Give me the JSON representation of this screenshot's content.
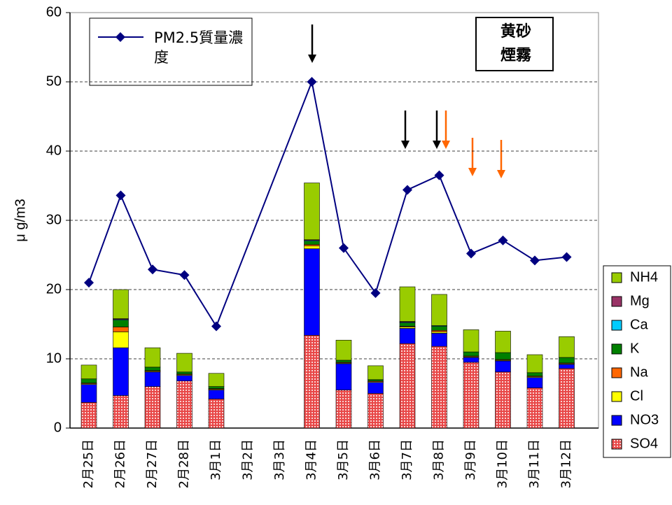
{
  "chart_data": {
    "type": "stacked-bar-line",
    "y_label": "μ g/m3",
    "categories": [
      "2月25日",
      "2月26日",
      "2月27日",
      "2月28日",
      "3月1日",
      "3月2日",
      "3月3日",
      "3月4日",
      "3月5日",
      "3月6日",
      "3月7日",
      "3月8日",
      "3月9日",
      "3月10日",
      "3月11日",
      "3月12日"
    ],
    "ylim": [
      0,
      60
    ],
    "yticks": [
      0,
      10,
      20,
      30,
      40,
      50,
      60
    ],
    "grid": true,
    "series": [
      {
        "name": "SO4",
        "color": "#e84848",
        "values": [
          3.7,
          4.7,
          6.0,
          6.8,
          4.2,
          null,
          null,
          13.4,
          5.5,
          5.0,
          12.2,
          11.8,
          9.5,
          8.1,
          5.8,
          8.6
        ]
      },
      {
        "name": "NO3",
        "color": "#0000ff",
        "values": [
          2.6,
          6.9,
          2.1,
          0.8,
          1.3,
          null,
          null,
          12.5,
          3.8,
          1.6,
          2.2,
          1.9,
          0.7,
          1.6,
          1.5,
          0.6
        ]
      },
      {
        "name": "Cl",
        "color": "#ffff00",
        "values": [
          0.1,
          2.3,
          0.1,
          0.1,
          0.1,
          null,
          null,
          0.4,
          0.1,
          0.1,
          0.2,
          0.2,
          0.1,
          0.1,
          0.1,
          0.1
        ]
      },
      {
        "name": "Na",
        "color": "#ff6600",
        "values": [
          0.1,
          0.7,
          0.1,
          0.1,
          0.1,
          null,
          null,
          0.2,
          0.1,
          0.1,
          0.1,
          0.2,
          0.1,
          0.1,
          0.1,
          0.1
        ]
      },
      {
        "name": "K",
        "color": "#008000",
        "values": [
          0.6,
          1.0,
          0.5,
          0.3,
          0.3,
          null,
          null,
          0.5,
          0.3,
          0.2,
          0.5,
          0.6,
          0.6,
          1.0,
          0.5,
          0.8
        ]
      },
      {
        "name": "Ca",
        "color": "#00ccff",
        "values": [
          0,
          0.1,
          0,
          0,
          0,
          null,
          null,
          0.1,
          0,
          0,
          0.1,
          0.1,
          0,
          0,
          0,
          0
        ]
      },
      {
        "name": "Mg",
        "color": "#993366",
        "values": [
          0,
          0.1,
          0,
          0,
          0,
          null,
          null,
          0.1,
          0,
          0,
          0.1,
          0,
          0,
          0,
          0,
          0
        ]
      },
      {
        "name": "NH4",
        "color": "#99cc00",
        "values": [
          2.0,
          4.2,
          2.8,
          2.7,
          1.9,
          null,
          null,
          8.2,
          2.9,
          2.0,
          5.0,
          4.5,
          3.2,
          3.1,
          2.6,
          3.0
        ]
      }
    ],
    "line": {
      "name": "PM2.5質量濃度",
      "color": "#000080",
      "span_gaps": true,
      "values": [
        21.0,
        33.6,
        22.9,
        22.1,
        14.7,
        null,
        null,
        50.0,
        26.0,
        19.5,
        34.4,
        36.5,
        25.2,
        27.1,
        24.2,
        24.7
      ]
    },
    "annotations": {
      "dust": {
        "label": "黄砂",
        "color": "#ff6600"
      },
      "smog": {
        "label": "煙霧",
        "color": "#000000"
      }
    }
  }
}
